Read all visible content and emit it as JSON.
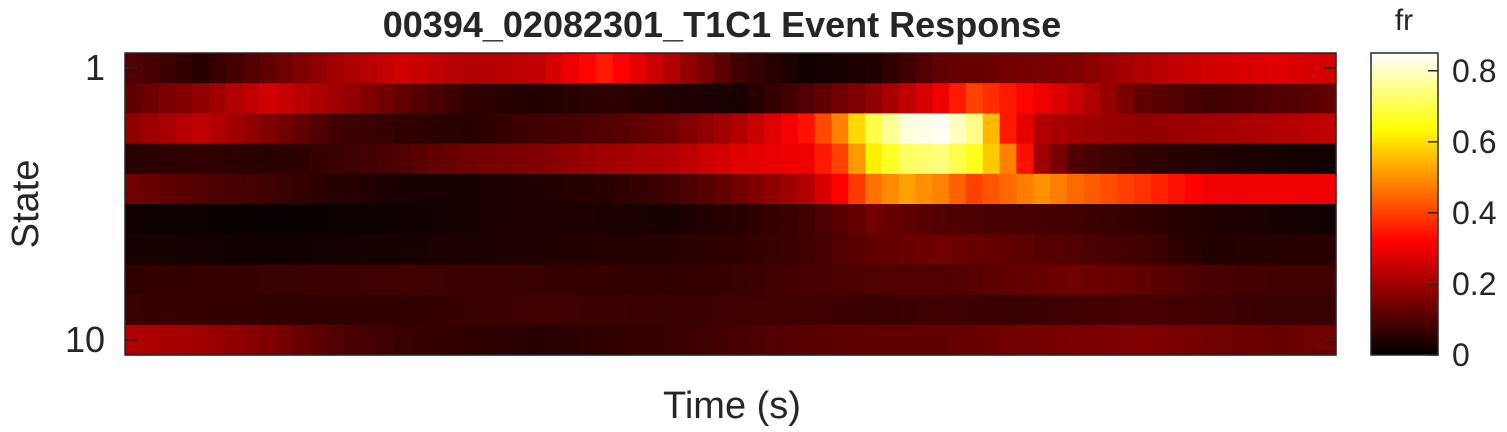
{
  "chart_data": {
    "type": "heatmap",
    "title": "00394_02082301_T1C1 Event Response",
    "xlabel": "Time (s)",
    "ylabel": "State",
    "y_tick_labels": [
      "1",
      "10"
    ],
    "y_tick_values": [
      1,
      10
    ],
    "colorbar": {
      "label": "fr",
      "colormap": "hot",
      "clim": [
        0,
        0.85
      ],
      "ticks": [
        0,
        0.2,
        0.4,
        0.6,
        0.8
      ],
      "tick_labels": [
        "0",
        "0.2",
        "0.4",
        "0.6",
        "0.8"
      ]
    },
    "n_rows": 10,
    "n_cols": 72,
    "rows": [
      {
        "state": 1,
        "knots": [
          [
            0,
            0.1
          ],
          [
            4,
            0.05
          ],
          [
            8,
            0.12
          ],
          [
            12,
            0.2
          ],
          [
            16,
            0.26
          ],
          [
            20,
            0.22
          ],
          [
            24,
            0.24
          ],
          [
            28,
            0.35
          ],
          [
            32,
            0.22
          ],
          [
            36,
            0.08
          ],
          [
            40,
            0.02
          ],
          [
            44,
            0.04
          ],
          [
            48,
            0.12
          ],
          [
            52,
            0.14
          ],
          [
            56,
            0.16
          ],
          [
            60,
            0.22
          ],
          [
            64,
            0.26
          ],
          [
            68,
            0.28
          ],
          [
            71,
            0.26
          ]
        ]
      },
      {
        "state": 2,
        "knots": [
          [
            0,
            0.12
          ],
          [
            4,
            0.18
          ],
          [
            8,
            0.26
          ],
          [
            12,
            0.2
          ],
          [
            16,
            0.12
          ],
          [
            20,
            0.06
          ],
          [
            24,
            0.04
          ],
          [
            28,
            0.06
          ],
          [
            32,
            0.04
          ],
          [
            36,
            0.03
          ],
          [
            40,
            0.1
          ],
          [
            44,
            0.18
          ],
          [
            48,
            0.3
          ],
          [
            50,
            0.4
          ],
          [
            52,
            0.35
          ],
          [
            56,
            0.25
          ],
          [
            60,
            0.12
          ],
          [
            64,
            0.08
          ],
          [
            68,
            0.1
          ],
          [
            71,
            0.12
          ]
        ]
      },
      {
        "state": 3,
        "knots": [
          [
            0,
            0.18
          ],
          [
            4,
            0.24
          ],
          [
            8,
            0.16
          ],
          [
            12,
            0.08
          ],
          [
            16,
            0.06
          ],
          [
            20,
            0.05
          ],
          [
            24,
            0.08
          ],
          [
            28,
            0.1
          ],
          [
            32,
            0.14
          ],
          [
            36,
            0.22
          ],
          [
            40,
            0.34
          ],
          [
            42,
            0.48
          ],
          [
            44,
            0.7
          ],
          [
            46,
            0.82
          ],
          [
            48,
            0.84
          ],
          [
            50,
            0.75
          ],
          [
            52,
            0.35
          ],
          [
            54,
            0.22
          ],
          [
            56,
            0.2
          ],
          [
            60,
            0.18
          ],
          [
            64,
            0.2
          ],
          [
            68,
            0.22
          ],
          [
            71,
            0.24
          ]
        ]
      },
      {
        "state": 4,
        "knots": [
          [
            0,
            0.05
          ],
          [
            4,
            0.06
          ],
          [
            8,
            0.05
          ],
          [
            12,
            0.07
          ],
          [
            16,
            0.1
          ],
          [
            20,
            0.14
          ],
          [
            24,
            0.16
          ],
          [
            28,
            0.2
          ],
          [
            32,
            0.22
          ],
          [
            36,
            0.28
          ],
          [
            40,
            0.3
          ],
          [
            42,
            0.4
          ],
          [
            44,
            0.62
          ],
          [
            46,
            0.72
          ],
          [
            48,
            0.74
          ],
          [
            50,
            0.66
          ],
          [
            52,
            0.48
          ],
          [
            54,
            0.2
          ],
          [
            56,
            0.1
          ],
          [
            60,
            0.06
          ],
          [
            64,
            0.04
          ],
          [
            68,
            0.03
          ],
          [
            71,
            0.02
          ]
        ]
      },
      {
        "state": 5,
        "knots": [
          [
            0,
            0.14
          ],
          [
            4,
            0.1
          ],
          [
            8,
            0.08
          ],
          [
            12,
            0.05
          ],
          [
            16,
            0.03
          ],
          [
            20,
            0.03
          ],
          [
            24,
            0.04
          ],
          [
            28,
            0.05
          ],
          [
            32,
            0.08
          ],
          [
            36,
            0.14
          ],
          [
            40,
            0.22
          ],
          [
            42,
            0.32
          ],
          [
            44,
            0.46
          ],
          [
            46,
            0.52
          ],
          [
            48,
            0.48
          ],
          [
            50,
            0.4
          ],
          [
            52,
            0.45
          ],
          [
            54,
            0.5
          ],
          [
            56,
            0.45
          ],
          [
            60,
            0.38
          ],
          [
            64,
            0.3
          ],
          [
            68,
            0.3
          ],
          [
            71,
            0.3
          ]
        ]
      },
      {
        "state": 6,
        "knots": [
          [
            0,
            0.02
          ],
          [
            8,
            0.01
          ],
          [
            16,
            0.02
          ],
          [
            24,
            0.04
          ],
          [
            32,
            0.03
          ],
          [
            36,
            0.05
          ],
          [
            40,
            0.08
          ],
          [
            44,
            0.14
          ],
          [
            48,
            0.1
          ],
          [
            52,
            0.09
          ],
          [
            56,
            0.08
          ],
          [
            60,
            0.06
          ],
          [
            64,
            0.04
          ],
          [
            68,
            0.03
          ],
          [
            71,
            0.02
          ]
        ]
      },
      {
        "state": 7,
        "knots": [
          [
            0,
            0.03
          ],
          [
            8,
            0.02
          ],
          [
            16,
            0.03
          ],
          [
            24,
            0.04
          ],
          [
            32,
            0.05
          ],
          [
            36,
            0.06
          ],
          [
            40,
            0.08
          ],
          [
            44,
            0.12
          ],
          [
            48,
            0.14
          ],
          [
            52,
            0.12
          ],
          [
            56,
            0.1
          ],
          [
            60,
            0.08
          ],
          [
            64,
            0.04
          ],
          [
            68,
            0.05
          ],
          [
            71,
            0.05
          ]
        ]
      },
      {
        "state": 8,
        "knots": [
          [
            0,
            0.06
          ],
          [
            8,
            0.07
          ],
          [
            16,
            0.08
          ],
          [
            24,
            0.07
          ],
          [
            32,
            0.06
          ],
          [
            36,
            0.07
          ],
          [
            40,
            0.09
          ],
          [
            44,
            0.1
          ],
          [
            48,
            0.1
          ],
          [
            52,
            0.12
          ],
          [
            56,
            0.14
          ],
          [
            60,
            0.12
          ],
          [
            64,
            0.09
          ],
          [
            68,
            0.08
          ],
          [
            71,
            0.08
          ]
        ]
      },
      {
        "state": 9,
        "knots": [
          [
            0,
            0.07
          ],
          [
            8,
            0.06
          ],
          [
            16,
            0.06
          ],
          [
            24,
            0.08
          ],
          [
            32,
            0.07
          ],
          [
            36,
            0.08
          ],
          [
            40,
            0.08
          ],
          [
            44,
            0.07
          ],
          [
            48,
            0.08
          ],
          [
            52,
            0.07
          ],
          [
            56,
            0.08
          ],
          [
            60,
            0.09
          ],
          [
            64,
            0.08
          ],
          [
            68,
            0.07
          ],
          [
            71,
            0.07
          ]
        ]
      },
      {
        "state": 10,
        "knots": [
          [
            0,
            0.22
          ],
          [
            4,
            0.2
          ],
          [
            8,
            0.16
          ],
          [
            12,
            0.1
          ],
          [
            16,
            0.07
          ],
          [
            20,
            0.06
          ],
          [
            24,
            0.05
          ],
          [
            28,
            0.06
          ],
          [
            32,
            0.07
          ],
          [
            36,
            0.09
          ],
          [
            40,
            0.11
          ],
          [
            44,
            0.12
          ],
          [
            48,
            0.12
          ],
          [
            52,
            0.14
          ],
          [
            56,
            0.15
          ],
          [
            60,
            0.16
          ],
          [
            64,
            0.14
          ],
          [
            68,
            0.13
          ],
          [
            71,
            0.14
          ]
        ]
      }
    ]
  }
}
